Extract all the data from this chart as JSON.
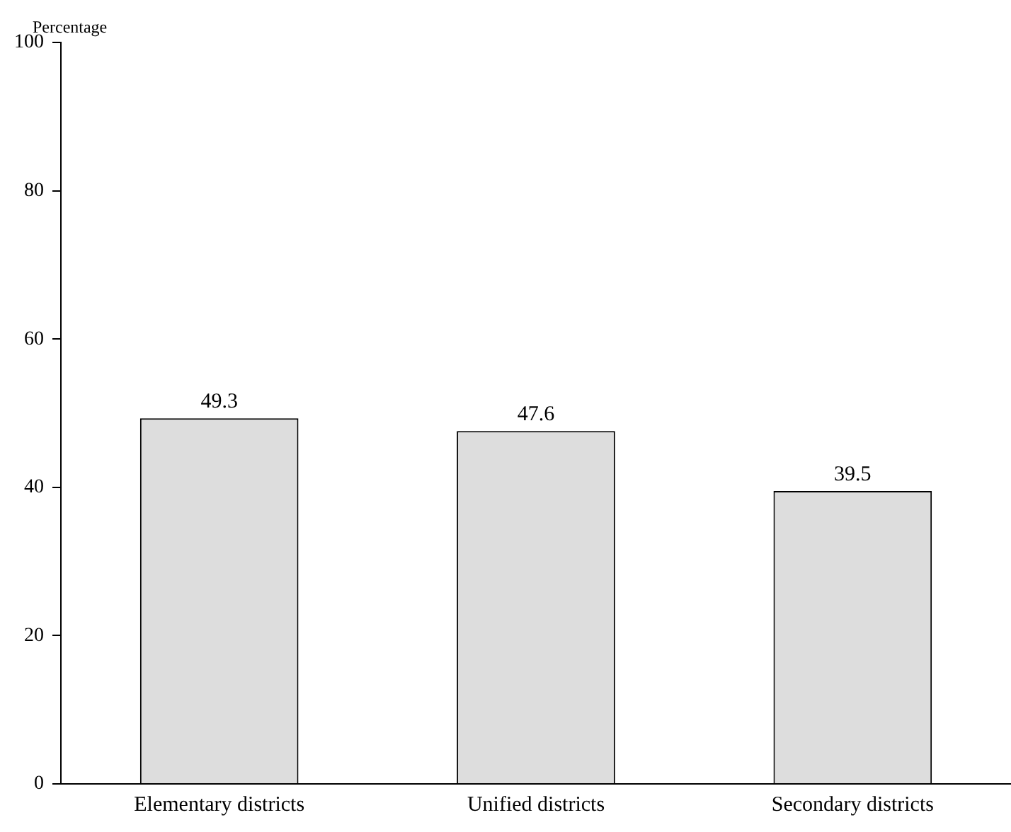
{
  "chart_data": {
    "type": "bar",
    "ylabel": "Percentage",
    "categories": [
      "Elementary districts",
      "Unified districts",
      "Secondary districts"
    ],
    "values": [
      49.3,
      47.6,
      39.5
    ],
    "color": "#dddddd",
    "ylim": [
      0,
      100
    ],
    "yticks": [
      0,
      20,
      40,
      60,
      80,
      100
    ],
    "data_labels": true,
    "grid": false,
    "legend": false
  }
}
